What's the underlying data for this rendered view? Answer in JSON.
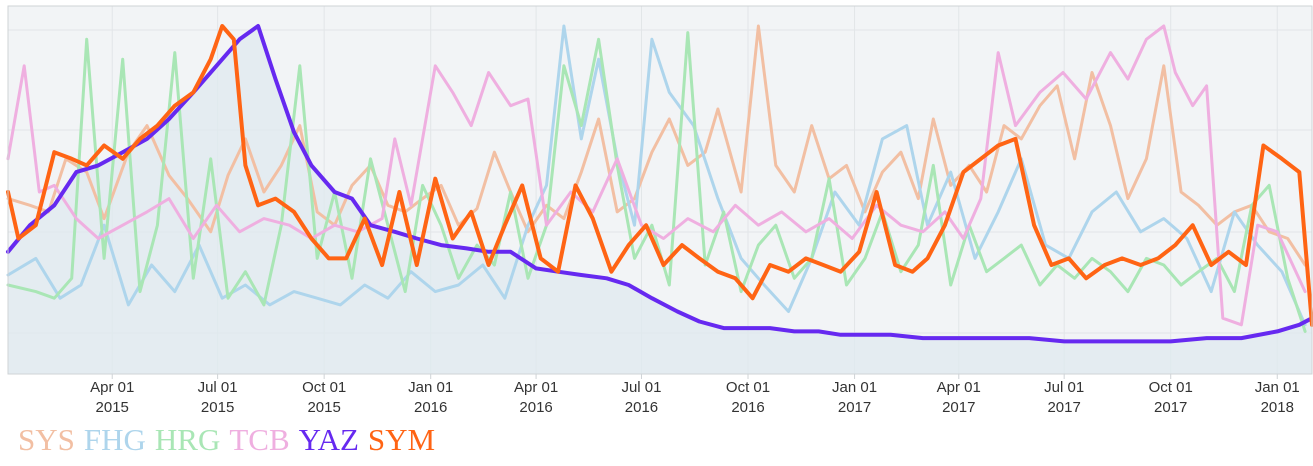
{
  "chart_data": {
    "type": "line",
    "title": "",
    "xlabel": "",
    "ylabel": "",
    "x_ticks": [
      {
        "date": "2015-04-01",
        "line1": "Apr 01",
        "line2": "2015"
      },
      {
        "date": "2015-07-01",
        "line1": "Jul 01",
        "line2": "2015"
      },
      {
        "date": "2015-10-01",
        "line1": "Oct 01",
        "line2": "2015"
      },
      {
        "date": "2016-01-01",
        "line1": "Jan 01",
        "line2": "2016"
      },
      {
        "date": "2016-04-01",
        "line1": "Apr 01",
        "line2": "2016"
      },
      {
        "date": "2016-07-01",
        "line1": "Jul 01",
        "line2": "2016"
      },
      {
        "date": "2016-10-01",
        "line1": "Oct 01",
        "line2": "2016"
      },
      {
        "date": "2017-01-01",
        "line1": "Jan 01",
        "line2": "2017"
      },
      {
        "date": "2017-04-01",
        "line1": "Apr 01",
        "line2": "2017"
      },
      {
        "date": "2017-07-01",
        "line1": "Jul 01",
        "line2": "2017"
      },
      {
        "date": "2017-10-01",
        "line1": "Oct 01",
        "line2": "2017"
      },
      {
        "date": "2018-01-01",
        "line1": "Jan 01",
        "line2": "2018"
      }
    ],
    "xlim": [
      "2015-01-01",
      "2018-01-31"
    ],
    "ylim": [
      0,
      100
    ],
    "y_axis_labels_visible": false,
    "grid": true,
    "legend_position": "bottom-left",
    "background": "#f2f4f6",
    "series": [
      {
        "name": "SYS",
        "color": "#f2bfa3",
        "width": 3,
        "x": [
          "2015-01-01",
          "2015-01-20",
          "2015-02-05",
          "2015-02-20",
          "2015-03-10",
          "2015-03-25",
          "2015-04-15",
          "2015-05-01",
          "2015-05-20",
          "2015-06-05",
          "2015-06-25",
          "2015-07-10",
          "2015-07-25",
          "2015-08-10",
          "2015-08-25",
          "2015-09-10",
          "2015-09-25",
          "2015-10-10",
          "2015-10-25",
          "2015-11-10",
          "2015-11-25",
          "2015-12-10",
          "2015-12-25",
          "2016-01-10",
          "2016-01-25",
          "2016-02-10",
          "2016-02-25",
          "2016-03-10",
          "2016-03-25",
          "2016-04-10",
          "2016-04-25",
          "2016-05-10",
          "2016-05-25",
          "2016-06-10",
          "2016-06-25",
          "2016-07-10",
          "2016-07-25",
          "2016-08-10",
          "2016-08-25",
          "2016-09-05",
          "2016-09-25",
          "2016-10-10",
          "2016-10-25",
          "2016-11-10",
          "2016-11-25",
          "2016-12-10",
          "2016-12-25",
          "2017-01-10",
          "2017-01-25",
          "2017-02-10",
          "2017-02-25",
          "2017-03-10",
          "2017-03-25",
          "2017-04-10",
          "2017-04-25",
          "2017-05-10",
          "2017-05-25",
          "2017-06-10",
          "2017-06-25",
          "2017-07-10",
          "2017-07-25",
          "2017-08-10",
          "2017-08-25",
          "2017-09-10",
          "2017-09-25",
          "2017-10-10",
          "2017-10-25",
          "2017-11-10",
          "2017-11-25",
          "2017-12-10",
          "2017-12-25",
          "2018-01-10",
          "2018-01-25"
        ],
        "values": [
          48,
          46,
          44,
          60,
          56,
          42,
          62,
          70,
          55,
          48,
          38,
          55,
          66,
          50,
          58,
          70,
          44,
          40,
          52,
          58,
          46,
          44,
          48,
          52,
          40,
          45,
          62,
          50,
          38,
          46,
          42,
          56,
          72,
          44,
          48,
          62,
          72,
          58,
          62,
          75,
          50,
          100,
          58,
          50,
          70,
          54,
          58,
          44,
          56,
          62,
          48,
          72,
          52,
          58,
          50,
          70,
          66,
          76,
          82,
          60,
          86,
          70,
          48,
          60,
          88,
          50,
          46,
          40,
          44,
          46,
          38,
          36,
          28
        ]
      },
      {
        "name": "FHG",
        "color": "#aed5ec",
        "width": 3,
        "x": [
          "2015-01-01",
          "2015-01-25",
          "2015-02-15",
          "2015-03-05",
          "2015-03-25",
          "2015-04-15",
          "2015-05-05",
          "2015-05-25",
          "2015-06-15",
          "2015-07-05",
          "2015-07-25",
          "2015-08-15",
          "2015-09-05",
          "2015-09-25",
          "2015-10-15",
          "2015-11-05",
          "2015-11-25",
          "2015-12-15",
          "2016-01-05",
          "2016-01-25",
          "2016-02-15",
          "2016-03-05",
          "2016-03-25",
          "2016-04-10",
          "2016-04-25",
          "2016-05-10",
          "2016-05-25",
          "2016-06-10",
          "2016-06-25",
          "2016-07-10",
          "2016-07-25",
          "2016-08-15",
          "2016-09-05",
          "2016-09-25",
          "2016-10-15",
          "2016-11-05",
          "2016-11-25",
          "2016-12-15",
          "2017-01-05",
          "2017-01-25",
          "2017-02-15",
          "2017-03-05",
          "2017-03-25",
          "2017-04-15",
          "2017-05-05",
          "2017-05-25",
          "2017-06-15",
          "2017-07-05",
          "2017-07-25",
          "2017-08-15",
          "2017-09-05",
          "2017-09-25",
          "2017-10-15",
          "2017-11-05",
          "2017-11-25",
          "2017-12-15",
          "2018-01-05",
          "2018-01-25"
        ],
        "values": [
          25,
          30,
          18,
          22,
          40,
          16,
          28,
          20,
          34,
          18,
          22,
          16,
          20,
          18,
          16,
          22,
          18,
          26,
          20,
          22,
          28,
          18,
          40,
          52,
          100,
          66,
          90,
          60,
          40,
          96,
          80,
          70,
          48,
          30,
          22,
          14,
          30,
          50,
          40,
          66,
          70,
          40,
          56,
          30,
          44,
          60,
          34,
          30,
          44,
          50,
          38,
          42,
          36,
          20,
          44,
          34,
          26,
          10
        ]
      },
      {
        "name": "HRG",
        "color": "#a9e6b5",
        "width": 3,
        "x": [
          "2015-01-01",
          "2015-01-25",
          "2015-02-10",
          "2015-02-25",
          "2015-03-10",
          "2015-03-25",
          "2015-04-10",
          "2015-04-25",
          "2015-05-10",
          "2015-05-25",
          "2015-06-10",
          "2015-06-25",
          "2015-07-10",
          "2015-07-25",
          "2015-08-10",
          "2015-08-25",
          "2015-09-10",
          "2015-09-25",
          "2015-10-10",
          "2015-10-25",
          "2015-11-10",
          "2015-11-25",
          "2015-12-10",
          "2015-12-25",
          "2016-01-10",
          "2016-01-25",
          "2016-02-10",
          "2016-02-25",
          "2016-03-10",
          "2016-03-25",
          "2016-04-10",
          "2016-04-25",
          "2016-05-10",
          "2016-05-25",
          "2016-06-10",
          "2016-06-25",
          "2016-07-10",
          "2016-07-25",
          "2016-08-10",
          "2016-08-25",
          "2016-09-10",
          "2016-09-25",
          "2016-10-10",
          "2016-10-25",
          "2016-11-10",
          "2016-11-25",
          "2016-12-10",
          "2016-12-25",
          "2017-01-10",
          "2017-01-25",
          "2017-02-10",
          "2017-02-25",
          "2017-03-10",
          "2017-03-25",
          "2017-04-10",
          "2017-04-25",
          "2017-05-10",
          "2017-05-25",
          "2017-06-10",
          "2017-06-25",
          "2017-07-10",
          "2017-07-25",
          "2017-08-10",
          "2017-08-25",
          "2017-09-10",
          "2017-09-25",
          "2017-10-10",
          "2017-10-25",
          "2017-11-10",
          "2017-11-25",
          "2017-12-10",
          "2017-12-25",
          "2018-01-10",
          "2018-01-25"
        ],
        "values": [
          22,
          20,
          18,
          24,
          96,
          30,
          90,
          20,
          40,
          92,
          24,
          60,
          18,
          26,
          16,
          40,
          88,
          30,
          50,
          24,
          60,
          40,
          20,
          52,
          40,
          24,
          34,
          28,
          50,
          24,
          40,
          88,
          70,
          96,
          58,
          30,
          40,
          22,
          98,
          28,
          44,
          20,
          34,
          40,
          24,
          30,
          54,
          22,
          30,
          44,
          26,
          34,
          58,
          22,
          40,
          26,
          30,
          34,
          22,
          28,
          24,
          30,
          26,
          20,
          30,
          28,
          22,
          26,
          30,
          20,
          46,
          52,
          24,
          8
        ]
      },
      {
        "name": "TCB",
        "color": "#efafe0",
        "width": 3,
        "x": [
          "2015-01-01",
          "2015-01-15",
          "2015-01-28",
          "2015-02-10",
          "2015-03-01",
          "2015-03-20",
          "2015-04-10",
          "2015-05-01",
          "2015-05-20",
          "2015-06-10",
          "2015-06-30",
          "2015-07-20",
          "2015-08-10",
          "2015-09-01",
          "2015-09-20",
          "2015-10-10",
          "2015-10-30",
          "2015-11-20",
          "2015-12-01",
          "2015-12-15",
          "2016-01-05",
          "2016-01-20",
          "2016-02-05",
          "2016-02-20",
          "2016-03-10",
          "2016-03-25",
          "2016-04-10",
          "2016-05-01",
          "2016-05-20",
          "2016-06-10",
          "2016-07-01",
          "2016-07-20",
          "2016-08-10",
          "2016-09-01",
          "2016-09-20",
          "2016-10-10",
          "2016-10-30",
          "2016-11-20",
          "2016-12-10",
          "2016-12-30",
          "2017-01-20",
          "2017-02-10",
          "2017-03-01",
          "2017-03-20",
          "2017-04-05",
          "2017-04-20",
          "2017-05-05",
          "2017-05-20",
          "2017-06-10",
          "2017-06-30",
          "2017-07-20",
          "2017-08-10",
          "2017-08-25",
          "2017-09-10",
          "2017-09-25",
          "2017-10-05",
          "2017-10-20",
          "2017-11-01",
          "2017-11-15",
          "2017-12-01",
          "2017-12-15",
          "2018-01-01",
          "2018-01-25"
        ],
        "values": [
          60,
          88,
          50,
          52,
          42,
          36,
          40,
          44,
          48,
          36,
          46,
          38,
          42,
          40,
          36,
          40,
          38,
          42,
          66,
          46,
          88,
          80,
          70,
          86,
          76,
          78,
          40,
          50,
          44,
          60,
          40,
          36,
          42,
          38,
          46,
          40,
          44,
          38,
          42,
          36,
          46,
          40,
          38,
          44,
          36,
          48,
          92,
          70,
          80,
          86,
          78,
          92,
          84,
          96,
          100,
          86,
          76,
          82,
          12,
          10,
          40,
          38,
          20
        ]
      },
      {
        "name": "YAZ",
        "color": "#6629f0",
        "width": 4,
        "x": [
          "2015-01-01",
          "2015-01-20",
          "2015-02-10",
          "2015-03-01",
          "2015-03-20",
          "2015-04-10",
          "2015-05-01",
          "2015-05-20",
          "2015-06-10",
          "2015-06-30",
          "2015-07-20",
          "2015-08-05",
          "2015-08-20",
          "2015-09-05",
          "2015-09-20",
          "2015-10-10",
          "2015-10-25",
          "2015-11-10",
          "2015-12-01",
          "2015-12-20",
          "2016-01-10",
          "2016-02-01",
          "2016-02-20",
          "2016-03-10",
          "2016-04-01",
          "2016-04-20",
          "2016-05-10",
          "2016-06-01",
          "2016-06-20",
          "2016-07-10",
          "2016-08-01",
          "2016-08-20",
          "2016-09-10",
          "2016-10-01",
          "2016-10-20",
          "2016-11-10",
          "2016-12-01",
          "2016-12-20",
          "2017-01-10",
          "2017-02-01",
          "2017-03-01",
          "2017-04-01",
          "2017-05-01",
          "2017-06-01",
          "2017-07-01",
          "2017-08-01",
          "2017-09-01",
          "2017-10-01",
          "2017-11-01",
          "2017-12-01",
          "2018-01-01",
          "2018-01-20",
          "2018-01-31"
        ],
        "values": [
          32,
          40,
          46,
          56,
          58,
          62,
          66,
          72,
          80,
          88,
          96,
          100,
          84,
          68,
          58,
          50,
          48,
          40,
          38,
          36,
          34,
          33,
          32,
          32,
          27,
          26,
          25,
          24,
          22,
          18,
          14,
          11,
          9,
          9,
          9,
          8,
          8,
          7,
          7,
          7,
          6,
          6,
          6,
          6,
          5,
          5,
          5,
          5,
          6,
          6,
          8,
          10,
          12
        ]
      },
      {
        "name": "SYM",
        "color": "#ff6414",
        "width": 4,
        "x": [
          "2015-01-01",
          "2015-01-10",
          "2015-01-25",
          "2015-02-10",
          "2015-02-25",
          "2015-03-10",
          "2015-03-25",
          "2015-04-10",
          "2015-04-25",
          "2015-05-10",
          "2015-05-25",
          "2015-06-10",
          "2015-06-25",
          "2015-07-05",
          "2015-07-15",
          "2015-07-25",
          "2015-08-05",
          "2015-08-20",
          "2015-09-05",
          "2015-09-20",
          "2015-10-05",
          "2015-10-20",
          "2015-11-05",
          "2015-11-20",
          "2015-12-05",
          "2015-12-20",
          "2016-01-05",
          "2016-01-20",
          "2016-02-05",
          "2016-02-20",
          "2016-03-05",
          "2016-03-20",
          "2016-04-05",
          "2016-04-20",
          "2016-05-05",
          "2016-05-20",
          "2016-06-05",
          "2016-06-20",
          "2016-07-05",
          "2016-07-20",
          "2016-08-05",
          "2016-08-20",
          "2016-09-05",
          "2016-09-20",
          "2016-10-05",
          "2016-10-20",
          "2016-11-05",
          "2016-11-20",
          "2016-12-05",
          "2016-12-20",
          "2017-01-05",
          "2017-01-20",
          "2017-02-05",
          "2017-02-20",
          "2017-03-05",
          "2017-03-20",
          "2017-04-05",
          "2017-04-20",
          "2017-05-05",
          "2017-05-20",
          "2017-06-05",
          "2017-06-20",
          "2017-07-05",
          "2017-07-20",
          "2017-08-05",
          "2017-08-20",
          "2017-09-05",
          "2017-09-20",
          "2017-10-05",
          "2017-10-20",
          "2017-11-05",
          "2017-11-20",
          "2017-12-05",
          "2017-12-20",
          "2018-01-05",
          "2018-01-20",
          "2018-01-31"
        ],
        "values": [
          50,
          36,
          40,
          62,
          60,
          58,
          64,
          60,
          66,
          70,
          76,
          80,
          90,
          100,
          96,
          58,
          46,
          48,
          44,
          36,
          30,
          30,
          42,
          28,
          50,
          28,
          54,
          36,
          44,
          28,
          40,
          52,
          30,
          26,
          52,
          42,
          26,
          34,
          40,
          28,
          34,
          30,
          26,
          24,
          18,
          28,
          26,
          30,
          28,
          26,
          32,
          50,
          28,
          26,
          30,
          40,
          56,
          60,
          64,
          66,
          40,
          28,
          30,
          24,
          28,
          30,
          28,
          30,
          34,
          40,
          28,
          32,
          28,
          64,
          60,
          56,
          10
        ]
      }
    ]
  },
  "legend": [
    {
      "label": "SYS",
      "color": "#f2bfa3"
    },
    {
      "label": "FHG",
      "color": "#aed5ec"
    },
    {
      "label": "HRG",
      "color": "#a9e6b5"
    },
    {
      "label": "TCB",
      "color": "#efafe0"
    },
    {
      "label": "YAZ",
      "color": "#6629f0"
    },
    {
      "label": "SYM",
      "color": "#ff6414"
    }
  ]
}
